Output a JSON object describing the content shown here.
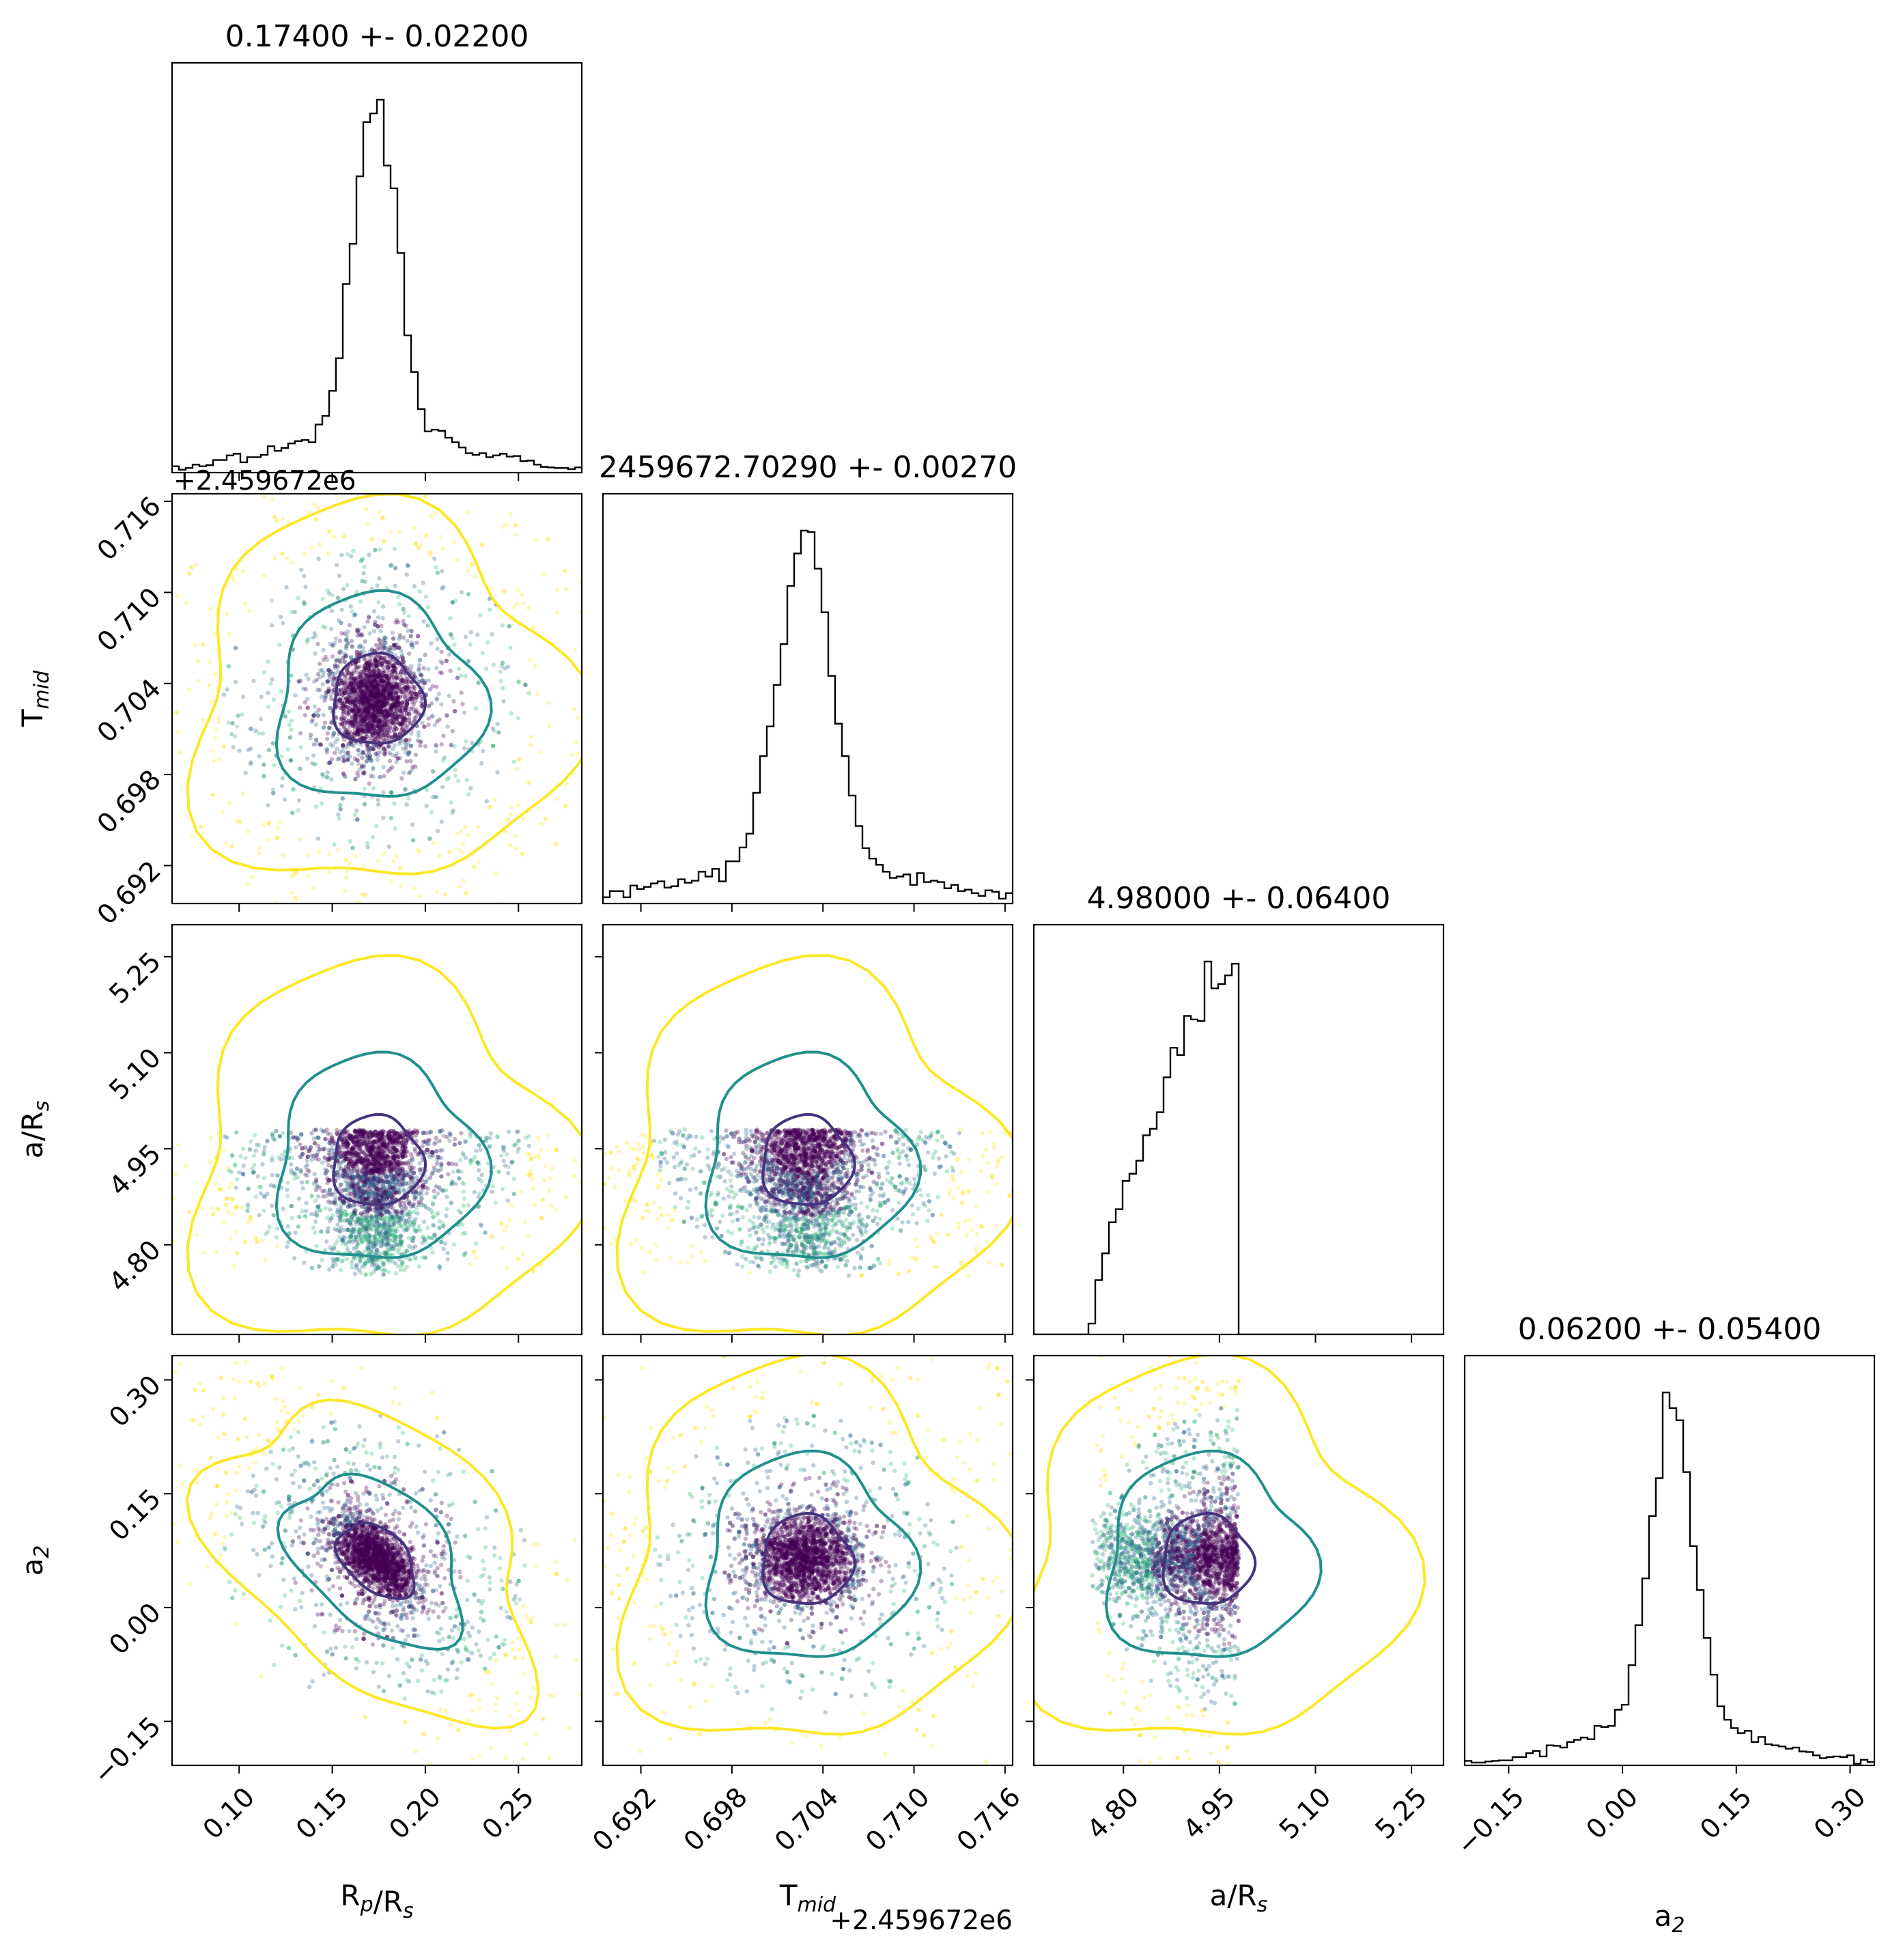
{
  "chart_data": {
    "type": "scatter",
    "kind": "corner-plot",
    "parameters": [
      {
        "key": "rprs",
        "label": "Rₚ/Rₛ",
        "label_main": "R",
        "label_sub1": "p",
        "label_mid": "/R",
        "label_sub2": "s",
        "title": "0.17400 +- 0.02200",
        "median": 0.174,
        "sigma": 0.022,
        "range": [
          0.064,
          0.284
        ],
        "ticks": [
          0.1,
          0.15,
          0.2,
          0.25
        ],
        "tick_labels": [
          "0.10",
          "0.15",
          "0.20",
          "0.25"
        ]
      },
      {
        "key": "tmid",
        "label": "Tₘᵢᵈ",
        "label_main": "T",
        "label_sub1": "mid",
        "title": "2459672.70290 +- 0.00270",
        "median": 0.7029,
        "sigma": 0.0027,
        "range": [
          0.6895,
          0.7165
        ],
        "ticks": [
          0.692,
          0.698,
          0.704,
          0.71,
          0.716
        ],
        "tick_labels": [
          "0.692",
          "0.698",
          "0.704",
          "0.710",
          "0.716"
        ],
        "offset_label": "+2.459672e6"
      },
      {
        "key": "ars",
        "label": "a/Rₛ",
        "label_main": "a/R",
        "label_sub1": "s",
        "title": "4.98000 +- 0.06400",
        "median": 4.98,
        "sigma": 0.064,
        "range": [
          4.66,
          5.3
        ],
        "ticks": [
          4.8,
          4.95,
          5.1,
          5.25
        ],
        "tick_labels": [
          "4.80",
          "4.95",
          "5.10",
          "5.25"
        ],
        "sample_bounds": [
          4.75,
          4.98
        ]
      },
      {
        "key": "a2",
        "label": "a₂",
        "label_main": "a",
        "label_sub1": "2",
        "title": "0.06200 +- 0.05400",
        "median": 0.062,
        "sigma": 0.054,
        "range": [
          -0.208,
          0.332
        ],
        "ticks": [
          -0.15,
          0.0,
          0.15,
          0.3
        ],
        "tick_labels": [
          "−0.15",
          "0.00",
          "0.15",
          "0.30"
        ]
      }
    ],
    "histograms": {
      "rprs": {
        "bins": 60,
        "peak_value": 0.1735,
        "shape": "peaked with broad wings"
      },
      "tmid": {
        "bins": 60,
        "peak_value": 0.7027,
        "shape": "peaked with broad wings"
      },
      "ars": {
        "bins": 60,
        "shape": "rising to upper bound then truncated at 4.98",
        "support": [
          4.75,
          4.98
        ]
      },
      "a2": {
        "bins": 60,
        "peak_value": 0.065,
        "shape": "peaked with broad wings"
      }
    },
    "contours": {
      "levels": [
        "inner",
        "middle",
        "outer"
      ],
      "colors": {
        "inner": "#46337e",
        "middle": "#21908d",
        "outer": "#fde725"
      }
    },
    "scatter_colormap": [
      "#440154",
      "#31688e",
      "#35b779",
      "#fde725"
    ],
    "histogram_color": "#000000",
    "grid": false
  }
}
